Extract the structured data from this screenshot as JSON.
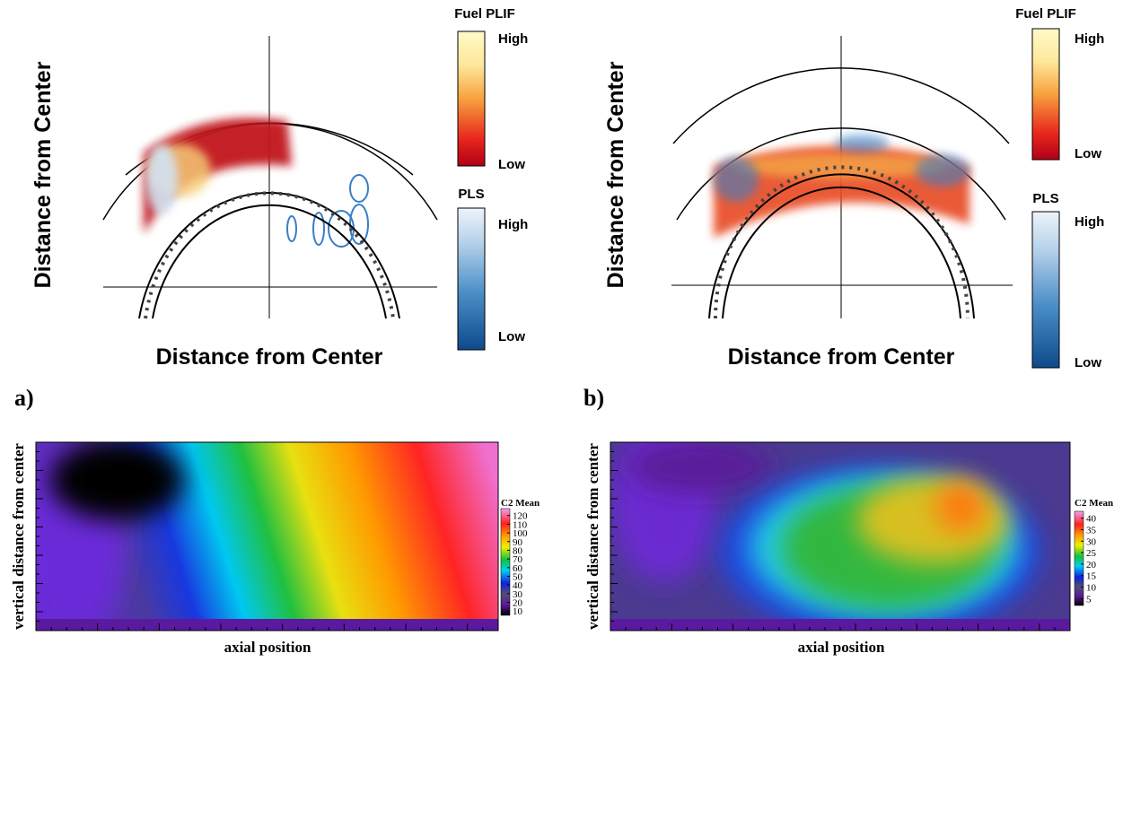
{
  "panels": [
    {
      "label": "a)",
      "x_label": "Distance from Center",
      "y_label": "Distance from Center",
      "colorbars": [
        {
          "title": "Fuel PLIF",
          "high": "High",
          "low": "Low"
        },
        {
          "title": "PLS",
          "high": "High",
          "low": "Low"
        }
      ]
    },
    {
      "label": "b)",
      "x_label": "Distance from Center",
      "y_label": "Distance from Center",
      "colorbars": [
        {
          "title": "Fuel PLIF",
          "high": "High",
          "low": "Low"
        },
        {
          "title": "PLS",
          "high": "High",
          "low": "Low"
        }
      ]
    }
  ],
  "heatmaps": [
    {
      "x_label": "axial position",
      "y_label": "vertical distance from center",
      "colorbar_title": "C2  Mean",
      "clim": [
        5,
        128
      ],
      "ticks": [
        10,
        20,
        30,
        40,
        50,
        60,
        70,
        80,
        90,
        100,
        110,
        120
      ]
    },
    {
      "x_label": "axial position",
      "y_label": "vertical distance from center",
      "colorbar_title": "C2  Mean",
      "clim": [
        2,
        43
      ],
      "ticks": [
        5,
        10,
        15,
        20,
        25,
        30,
        35,
        40
      ]
    }
  ]
}
